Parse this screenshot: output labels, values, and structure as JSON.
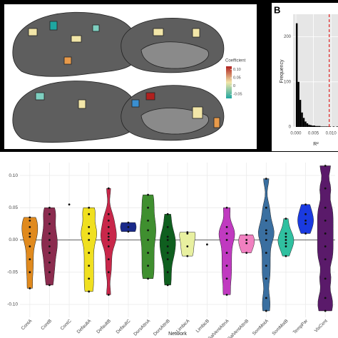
{
  "chart_data": [
    {
      "type": "colorbar",
      "title": "Coefficient",
      "colors": [
        "#1fa6a0",
        "#f2e6a8",
        "#b0201e"
      ],
      "lim": [
        -0.075,
        0.12
      ],
      "ticks": [
        {
          "value": 0.1,
          "label": "0.10"
        },
        0.05,
        0,
        -0.05
      ]
    },
    {
      "type": "histogram",
      "panel_label": "B",
      "ylabel": "Frequency",
      "xlabel": "R²",
      "color": "#000000",
      "bins": [
        0,
        0.0005,
        0.001,
        0.0015,
        0.002,
        0.0025,
        0.003,
        0.0035,
        0.004,
        0.0045,
        0.005,
        0.0055,
        0.006,
        0.0065,
        0.007,
        0.0075,
        0.008,
        0.0085,
        0.009,
        0.0095,
        0.01,
        0.0105,
        0.011,
        0.0115,
        0.012
      ],
      "counts": [
        230,
        100,
        60,
        32,
        20,
        12,
        8,
        5,
        4,
        3,
        3,
        2,
        2,
        2,
        1,
        1,
        1,
        1,
        1,
        1,
        0,
        1,
        0,
        1
      ],
      "xlim": [
        -0.0008,
        0.012
      ],
      "ylim": [
        0,
        250
      ],
      "xticks": [
        {
          "value": 0,
          "label": "0.000"
        },
        {
          "value": 0.005,
          "label": "0.005"
        },
        {
          "value": 0.01,
          "label": "0.010"
        }
      ],
      "yticks": [
        0,
        100,
        200
      ],
      "vline": 0.0095,
      "vline_color": "#e02020"
    },
    {
      "type": "violin",
      "xlabel": "Network",
      "ylim": [
        -0.12,
        0.12
      ],
      "yticks": [
        {
          "value": -0.1,
          "label": "-0.10"
        },
        -0.05,
        {
          "value": 0,
          "label": "0.00"
        },
        0.05,
        {
          "value": 0.1,
          "label": "0.10"
        }
      ],
      "hline": 0,
      "grid": true,
      "categories": [
        "ContA",
        "ContB",
        "ContC",
        "DefaultA",
        "DefaultB",
        "DefaultC",
        "DorsAttnA",
        "DorsAttnB",
        "LimbicA",
        "LimbicB",
        "SalVentAttnA",
        "SalVentAttnB",
        "SomMotA",
        "SomMotB",
        "TempPar",
        "VisCent"
      ],
      "series": [
        {
          "name": "ContA",
          "color": "#e08a1e",
          "values": [
            0.035,
            0.03,
            0.02,
            0.01,
            0.005,
            -0.01,
            -0.03,
            -0.05,
            -0.075
          ]
        },
        {
          "name": "ContB",
          "color": "#8b2c4f",
          "values": [
            0.05,
            0.04,
            0.025,
            0.01,
            0,
            -0.01,
            -0.02,
            -0.035,
            -0.05,
            -0.07
          ]
        },
        {
          "name": "ContC",
          "color": "#c9b98a",
          "values": [
            0.055
          ]
        },
        {
          "name": "DefaultA",
          "color": "#f0e020",
          "values": [
            0.05,
            0.04,
            0.02,
            0.01,
            0,
            -0.02,
            -0.04,
            -0.06,
            -0.08
          ]
        },
        {
          "name": "DefaultB",
          "color": "#c8274a",
          "values": [
            0.08,
            0.04,
            0.03,
            0.02,
            0.01,
            0.005,
            0,
            -0.01,
            -0.03,
            -0.05,
            -0.085
          ]
        },
        {
          "name": "DefaultC",
          "color": "#1a2a8a",
          "values": [
            0.027,
            0.02,
            0.013
          ]
        },
        {
          "name": "DorsAttnA",
          "color": "#3f8f2f",
          "values": [
            0.07,
            0.05,
            0.03,
            0.015,
            0,
            -0.02,
            -0.04,
            -0.06
          ]
        },
        {
          "name": "DorsAttnB",
          "color": "#0f5f1f",
          "values": [
            0.04,
            0.02,
            0.005,
            0,
            -0.01,
            -0.02,
            -0.03,
            -0.05,
            -0.07
          ]
        },
        {
          "name": "LimbicA",
          "color": "#e8f0a0",
          "values": [
            0.012,
            0.01,
            -0.01,
            -0.025
          ]
        },
        {
          "name": "LimbicB",
          "color": "#8a8a8a",
          "values": [
            -0.007
          ]
        },
        {
          "name": "SalVentAttnA",
          "color": "#c03ac0",
          "values": [
            0.05,
            0.02,
            0.01,
            0,
            -0.02,
            -0.04,
            -0.06,
            -0.085
          ]
        },
        {
          "name": "SalVentAttnB",
          "color": "#f080c0",
          "values": [
            0.008,
            0,
            -0.005,
            -0.02
          ]
        },
        {
          "name": "SomMotA",
          "color": "#3a6fa0",
          "values": [
            0.095,
            0.05,
            0.03,
            0.015,
            0.01,
            0,
            -0.02,
            -0.04,
            -0.06,
            -0.09,
            -0.11
          ]
        },
        {
          "name": "SomMotB",
          "color": "#30c0a0",
          "values": [
            0.033,
            0.01,
            0.005,
            0,
            -0.005,
            -0.01,
            -0.025
          ]
        },
        {
          "name": "TempPar",
          "color": "#1a3ae0",
          "values": [
            0.055,
            0.04,
            0.03,
            0.025,
            0.01
          ]
        },
        {
          "name": "VisCent",
          "color": "#5a1a6a",
          "values": [
            0.115,
            0.08,
            0.05,
            0.03,
            0.01,
            -0.01,
            -0.03,
            -0.06,
            -0.09,
            -0.11
          ]
        }
      ]
    }
  ]
}
